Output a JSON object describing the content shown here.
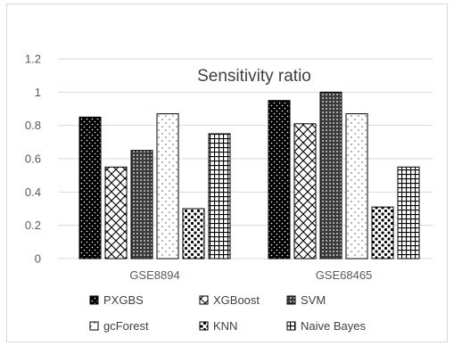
{
  "chart_data": {
    "type": "bar",
    "title": "Sensitivity ratio",
    "categories": [
      "GSE8894",
      "GSE68465"
    ],
    "series": [
      {
        "name": "PXGBS",
        "values": [
          0.85,
          0.95
        ],
        "pattern": "dots-dark"
      },
      {
        "name": "XGBoost",
        "values": [
          0.55,
          0.81
        ],
        "pattern": "diagonal-cross"
      },
      {
        "name": "SVM",
        "values": [
          0.65,
          1.0
        ],
        "pattern": "dense-grid"
      },
      {
        "name": "gcForest",
        "values": [
          0.87,
          0.87
        ],
        "pattern": "sparse-dots"
      },
      {
        "name": "KNN",
        "values": [
          0.3,
          0.31
        ],
        "pattern": "spots"
      },
      {
        "name": "Naive Bayes",
        "values": [
          0.75,
          0.55
        ],
        "pattern": "grid"
      }
    ],
    "ylim": [
      0,
      1.2
    ],
    "yticks": [
      "0",
      "0.2",
      "0.4",
      "0.6",
      "0.8",
      "1",
      "1.2"
    ],
    "legend_position": "bottom",
    "grid": true
  }
}
